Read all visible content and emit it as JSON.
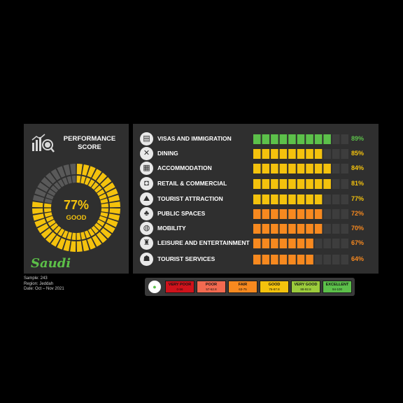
{
  "performance": {
    "title_line1": "PERFORMANCE",
    "title_line2": "SCORE",
    "score_value": "77%",
    "score_fraction": 0.77,
    "rating": "GOOD",
    "gauge_color": "#f4c20d"
  },
  "brand": {
    "logo_text": "Saudi",
    "logo_color": "#5cc048"
  },
  "meta": {
    "sample": "Sample: 243",
    "region": "Region: Jeddah",
    "date": "Date: Oct – Nov 2021"
  },
  "categories": [
    {
      "label": "VISAS AND IMMIGRATION",
      "value_text": "89%",
      "value": 89,
      "color": "#5cc04a",
      "icon": "passport-icon",
      "glyph": "▤"
    },
    {
      "label": "DINING",
      "value_text": "85%",
      "value": 85,
      "color": "#f4c20d",
      "icon": "cutlery-icon",
      "glyph": "✕"
    },
    {
      "label": "ACCOMMODATION",
      "value_text": "84%",
      "value": 84,
      "color": "#f4c20d",
      "icon": "hotel-icon",
      "glyph": "▦"
    },
    {
      "label": "RETAIL & COMMERCIAL",
      "value_text": "81%",
      "value": 81,
      "color": "#f4c20d",
      "icon": "shopping-bag-icon",
      "glyph": "◘"
    },
    {
      "label": "TOURIST ATTRACTION",
      "value_text": "77%",
      "value": 77,
      "color": "#f4c20d",
      "icon": "landmark-icon",
      "glyph": "⛰"
    },
    {
      "label": "PUBLIC SPACES",
      "value_text": "72%",
      "value": 72,
      "color": "#f7891f",
      "icon": "park-icon",
      "glyph": "♣"
    },
    {
      "label": "MOBILITY",
      "value_text": "70%",
      "value": 70,
      "color": "#f7891f",
      "icon": "vehicle-icon",
      "glyph": "◍"
    },
    {
      "label": "LEISURE AND ENTERTAINMENT",
      "value_text": "67%",
      "value": 67,
      "color": "#f7891f",
      "icon": "entertainment-icon",
      "glyph": "♜"
    },
    {
      "label": "TOURIST SERVICES",
      "value_text": "64%",
      "value": 64,
      "color": "#f7891f",
      "icon": "tourist-services-icon",
      "glyph": "☗"
    }
  ],
  "legend": [
    {
      "label": "VERY POOR",
      "range": "0-56",
      "color": "#d0121b"
    },
    {
      "label": "POOR",
      "range": "57-62.8",
      "color": "#f36a50"
    },
    {
      "label": "FAIR",
      "range": "63-75",
      "color": "#f7891f"
    },
    {
      "label": "GOOD",
      "range": "76-87.8",
      "color": "#f4c20d"
    },
    {
      "label": "VERY GOOD",
      "range": "88-92.8",
      "color": "#9ccc3c"
    },
    {
      "label": "EXCELLENT",
      "range": "94-100",
      "color": "#5cc04a"
    }
  ],
  "colors": {
    "bar_empty": "#3d3d3d",
    "gauge_empty": "#595959",
    "panel": "#2f2f2f"
  }
}
